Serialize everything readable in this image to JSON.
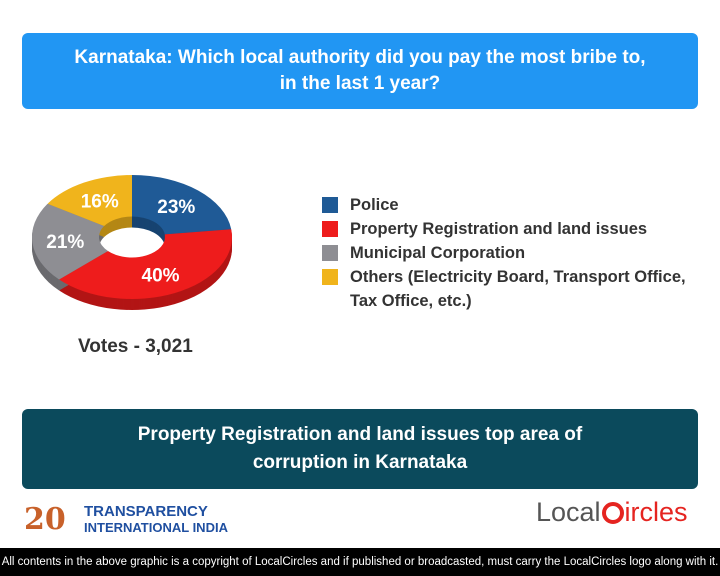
{
  "header": {
    "title_line1": "Karnataka: Which local authority did you pay the most bribe to,",
    "title_line2": "in the last 1 year?"
  },
  "chart_data": {
    "type": "pie",
    "style": "3d-donut",
    "categories": [
      "Police",
      "Property Registration and land issues",
      "Municipal Corporation",
      "Others (Electricity Board, Transport Office, Tax Office, etc.)"
    ],
    "values": [
      23,
      40,
      21,
      16
    ],
    "data_labels": [
      "23%",
      "40%",
      "21%",
      "16%"
    ],
    "colors": [
      "#1f5a96",
      "#ee1c1c",
      "#8e8e93",
      "#f0b41c"
    ],
    "legend_placement": "right",
    "legend": [
      {
        "line1": "Police"
      },
      {
        "line1": "Property Registration and land issues"
      },
      {
        "line1": "Municipal Corporation"
      },
      {
        "line1": "Others (Electricity Board, Transport Office,",
        "line2": "Tax Office, etc.)"
      }
    ],
    "votes": "Votes - 3,021"
  },
  "summary": {
    "line1": "Property Registration and land issues top area of",
    "line2": "corruption in Karnataka"
  },
  "logos": {
    "ti_number": "20",
    "ti_line1": "TRANSPARENCY",
    "ti_line2": "INTERNATIONAL INDIA",
    "lc_pre": "Local",
    "lc_post": "ircles"
  },
  "footer": "All contents in the above graphic is a copyright of LocalCircles and if published or broadcasted, must carry the LocalCircles logo along with it."
}
